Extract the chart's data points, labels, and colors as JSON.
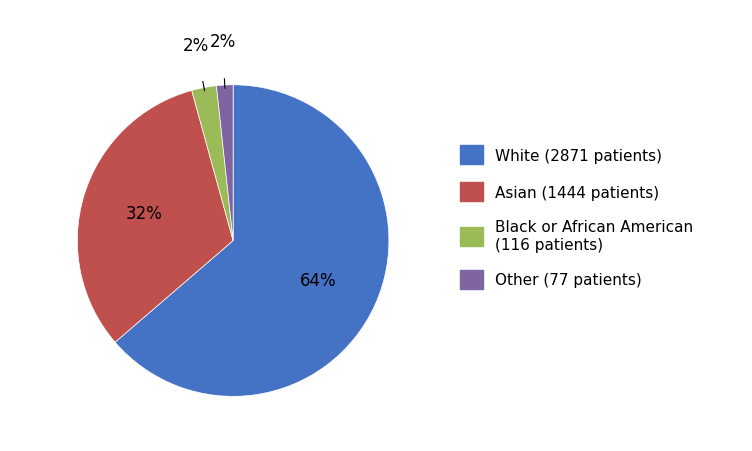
{
  "labels": [
    "White (2871 patients)",
    "Asian (1444 patients)",
    "Black or African American\n(116 patients)",
    "Other (77 patients)"
  ],
  "values": [
    2871,
    1444,
    116,
    77
  ],
  "percentages": [
    "64%",
    "32%",
    "2%",
    "2%"
  ],
  "colors": [
    "#4472C4",
    "#C0504D",
    "#9BBB59",
    "#8064A2"
  ],
  "background_color": "#ffffff",
  "text_fontsize": 12,
  "legend_fontsize": 11,
  "startangle": 90
}
